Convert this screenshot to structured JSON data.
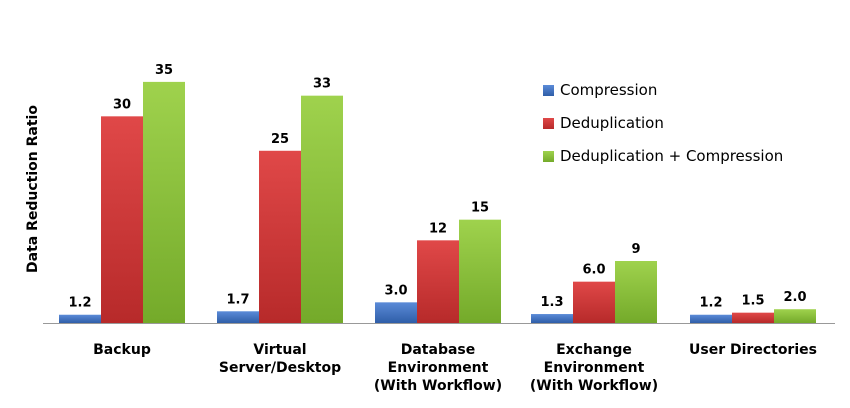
{
  "chart_data": {
    "type": "bar",
    "title": "",
    "xlabel": "",
    "ylabel": "Data Reduction Ratio",
    "ylim": [
      0,
      36
    ],
    "grid": false,
    "legend_position": "top-right",
    "categories": [
      [
        "Backup"
      ],
      [
        "Virtual",
        "Server/Desktop"
      ],
      [
        "Database",
        "Environment",
        "(With Workflow)"
      ],
      [
        "Exchange",
        "Environment",
        "(With Workflow)"
      ],
      [
        "User Directories"
      ]
    ],
    "series": [
      {
        "name": "Compression",
        "color": "#4472c4",
        "values": [
          1.2,
          1.7,
          3.0,
          1.3,
          1.2
        ],
        "labels": [
          "1.2",
          "1.7",
          "3.0",
          "1.3",
          "1.2"
        ]
      },
      {
        "name": "Deduplication",
        "color": "#d23b3b",
        "values": [
          30,
          25,
          12,
          6.0,
          1.5
        ],
        "labels": [
          "30",
          "25",
          "12",
          "6.0",
          "1.5"
        ]
      },
      {
        "name": "Deduplication + Compression",
        "color": "#8cc63f",
        "values": [
          35,
          33,
          15,
          9,
          2.0
        ],
        "labels": [
          "35",
          "33",
          "15",
          "9",
          "2.0"
        ]
      }
    ]
  }
}
